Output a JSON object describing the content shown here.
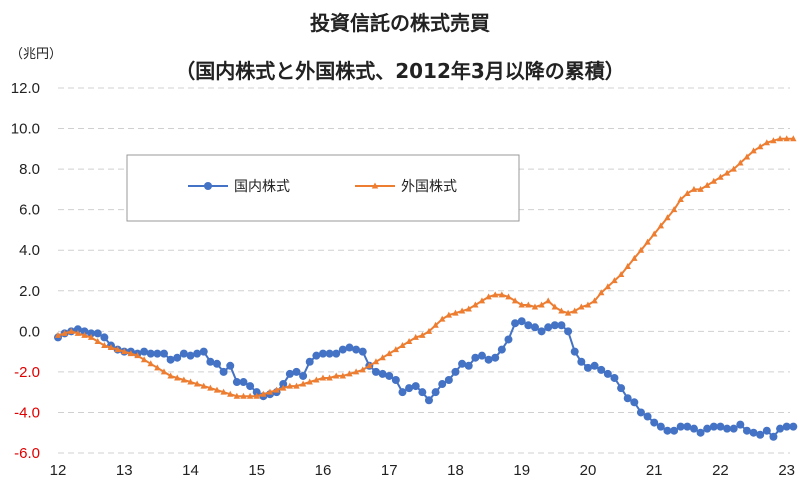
{
  "chart_data": {
    "type": "line",
    "title": "投資信託の株式売買",
    "subtitle": "（国内株式と外国株式、2012年3月以降の累積）",
    "ylabel": "（兆円）",
    "xlabel": "",
    "ylim": [
      -6,
      12
    ],
    "xlim": [
      12,
      23.1
    ],
    "grid": true,
    "legend_position": "upper-left-inside",
    "y_ticks": [
      "12.0",
      "10.0",
      "8.0",
      "6.0",
      "4.0",
      "2.0",
      "0.0",
      "-2.0",
      "-4.0",
      "-6.0"
    ],
    "x_ticks": [
      "12",
      "13",
      "14",
      "15",
      "16",
      "17",
      "18",
      "19",
      "20",
      "21",
      "22",
      "23"
    ],
    "series": [
      {
        "name": "国内株式",
        "color": "#4472c4",
        "marker": "circle",
        "x": [
          12.0,
          12.1,
          12.2,
          12.3,
          12.4,
          12.5,
          12.6,
          12.7,
          12.8,
          12.9,
          13.0,
          13.1,
          13.2,
          13.3,
          13.4,
          13.5,
          13.6,
          13.7,
          13.8,
          13.9,
          14.0,
          14.1,
          14.2,
          14.3,
          14.4,
          14.5,
          14.6,
          14.7,
          14.8,
          14.9,
          15.0,
          15.1,
          15.2,
          15.3,
          15.4,
          15.5,
          15.6,
          15.7,
          15.8,
          15.9,
          16.0,
          16.1,
          16.2,
          16.3,
          16.4,
          16.5,
          16.6,
          16.7,
          16.8,
          16.9,
          17.0,
          17.1,
          17.2,
          17.3,
          17.4,
          17.5,
          17.6,
          17.7,
          17.8,
          17.9,
          18.0,
          18.1,
          18.2,
          18.3,
          18.4,
          18.5,
          18.6,
          18.7,
          18.8,
          18.9,
          19.0,
          19.1,
          19.2,
          19.3,
          19.4,
          19.5,
          19.6,
          19.7,
          19.8,
          19.9,
          20.0,
          20.1,
          20.2,
          20.3,
          20.4,
          20.5,
          20.6,
          20.7,
          20.8,
          20.9,
          21.0,
          21.1,
          21.2,
          21.3,
          21.4,
          21.5,
          21.6,
          21.7,
          21.8,
          21.9,
          22.0,
          22.1,
          22.2,
          22.3,
          22.4,
          22.5,
          22.6,
          22.7,
          22.8,
          22.9,
          23.0,
          23.1
        ],
        "y": [
          -0.3,
          -0.1,
          0.0,
          0.1,
          0.0,
          -0.1,
          -0.1,
          -0.3,
          -0.7,
          -0.9,
          -1.0,
          -1.0,
          -1.1,
          -1.0,
          -1.1,
          -1.1,
          -1.1,
          -1.4,
          -1.3,
          -1.1,
          -1.2,
          -1.1,
          -1.0,
          -1.5,
          -1.6,
          -2.0,
          -1.7,
          -2.5,
          -2.5,
          -2.7,
          -3.0,
          -3.2,
          -3.1,
          -3.0,
          -2.6,
          -2.1,
          -2.0,
          -2.2,
          -1.5,
          -1.2,
          -1.1,
          -1.1,
          -1.1,
          -0.9,
          -0.8,
          -0.9,
          -1.0,
          -1.7,
          -2.0,
          -2.1,
          -2.2,
          -2.4,
          -3.0,
          -2.8,
          -2.7,
          -3.0,
          -3.4,
          -3.0,
          -2.6,
          -2.4,
          -2.0,
          -1.6,
          -1.7,
          -1.3,
          -1.2,
          -1.4,
          -1.3,
          -0.9,
          -0.4,
          0.4,
          0.5,
          0.3,
          0.2,
          0.0,
          0.2,
          0.3,
          0.3,
          0.0,
          -1.0,
          -1.5,
          -1.8,
          -1.7,
          -1.9,
          -2.1,
          -2.3,
          -2.8,
          -3.3,
          -3.5,
          -4.0,
          -4.2,
          -4.5,
          -4.7,
          -4.9,
          -4.9,
          -4.7,
          -4.7,
          -4.8,
          -5.0,
          -4.8,
          -4.7,
          -4.7,
          -4.8,
          -4.8,
          -4.6,
          -4.9,
          -5.0,
          -5.1,
          -4.9,
          -5.2,
          -4.8,
          -4.7,
          -4.7
        ]
      },
      {
        "name": "外国株式",
        "color": "#ed7d31",
        "marker": "triangle",
        "x": [
          12.0,
          12.1,
          12.2,
          12.3,
          12.4,
          12.5,
          12.6,
          12.7,
          12.8,
          12.9,
          13.0,
          13.1,
          13.2,
          13.3,
          13.4,
          13.5,
          13.6,
          13.7,
          13.8,
          13.9,
          14.0,
          14.1,
          14.2,
          14.3,
          14.4,
          14.5,
          14.6,
          14.7,
          14.8,
          14.9,
          15.0,
          15.1,
          15.2,
          15.3,
          15.4,
          15.5,
          15.6,
          15.7,
          15.8,
          15.9,
          16.0,
          16.1,
          16.2,
          16.3,
          16.4,
          16.5,
          16.6,
          16.7,
          16.8,
          16.9,
          17.0,
          17.1,
          17.2,
          17.3,
          17.4,
          17.5,
          17.6,
          17.7,
          17.8,
          17.9,
          18.0,
          18.1,
          18.2,
          18.3,
          18.4,
          18.5,
          18.6,
          18.7,
          18.8,
          18.9,
          19.0,
          19.1,
          19.2,
          19.3,
          19.4,
          19.5,
          19.6,
          19.7,
          19.8,
          19.9,
          20.0,
          20.1,
          20.2,
          20.3,
          20.4,
          20.5,
          20.6,
          20.7,
          20.8,
          20.9,
          21.0,
          21.1,
          21.2,
          21.3,
          21.4,
          21.5,
          21.6,
          21.7,
          21.8,
          21.9,
          22.0,
          22.1,
          22.2,
          22.3,
          22.4,
          22.5,
          22.6,
          22.7,
          22.8,
          22.9,
          23.0,
          23.1
        ],
        "y": [
          -0.2,
          -0.1,
          0.0,
          -0.1,
          -0.2,
          -0.3,
          -0.5,
          -0.7,
          -0.8,
          -0.9,
          -1.0,
          -1.1,
          -1.2,
          -1.4,
          -1.6,
          -1.8,
          -2.0,
          -2.2,
          -2.3,
          -2.4,
          -2.5,
          -2.6,
          -2.7,
          -2.8,
          -2.9,
          -3.0,
          -3.1,
          -3.2,
          -3.2,
          -3.2,
          -3.2,
          -3.1,
          -3.0,
          -2.9,
          -2.8,
          -2.7,
          -2.7,
          -2.6,
          -2.5,
          -2.4,
          -2.3,
          -2.3,
          -2.2,
          -2.2,
          -2.1,
          -2.0,
          -1.9,
          -1.7,
          -1.5,
          -1.3,
          -1.1,
          -0.9,
          -0.7,
          -0.5,
          -0.3,
          -0.2,
          0.0,
          0.3,
          0.6,
          0.8,
          0.9,
          1.0,
          1.1,
          1.3,
          1.5,
          1.7,
          1.8,
          1.8,
          1.7,
          1.5,
          1.3,
          1.3,
          1.2,
          1.3,
          1.5,
          1.2,
          1.0,
          0.9,
          1.0,
          1.2,
          1.3,
          1.5,
          1.9,
          2.2,
          2.5,
          2.8,
          3.2,
          3.6,
          4.0,
          4.4,
          4.8,
          5.2,
          5.6,
          6.0,
          6.5,
          6.8,
          7.0,
          7.0,
          7.2,
          7.4,
          7.6,
          7.8,
          8.0,
          8.3,
          8.6,
          8.9,
          9.1,
          9.3,
          9.4,
          9.5,
          9.5,
          9.5
        ]
      }
    ]
  }
}
